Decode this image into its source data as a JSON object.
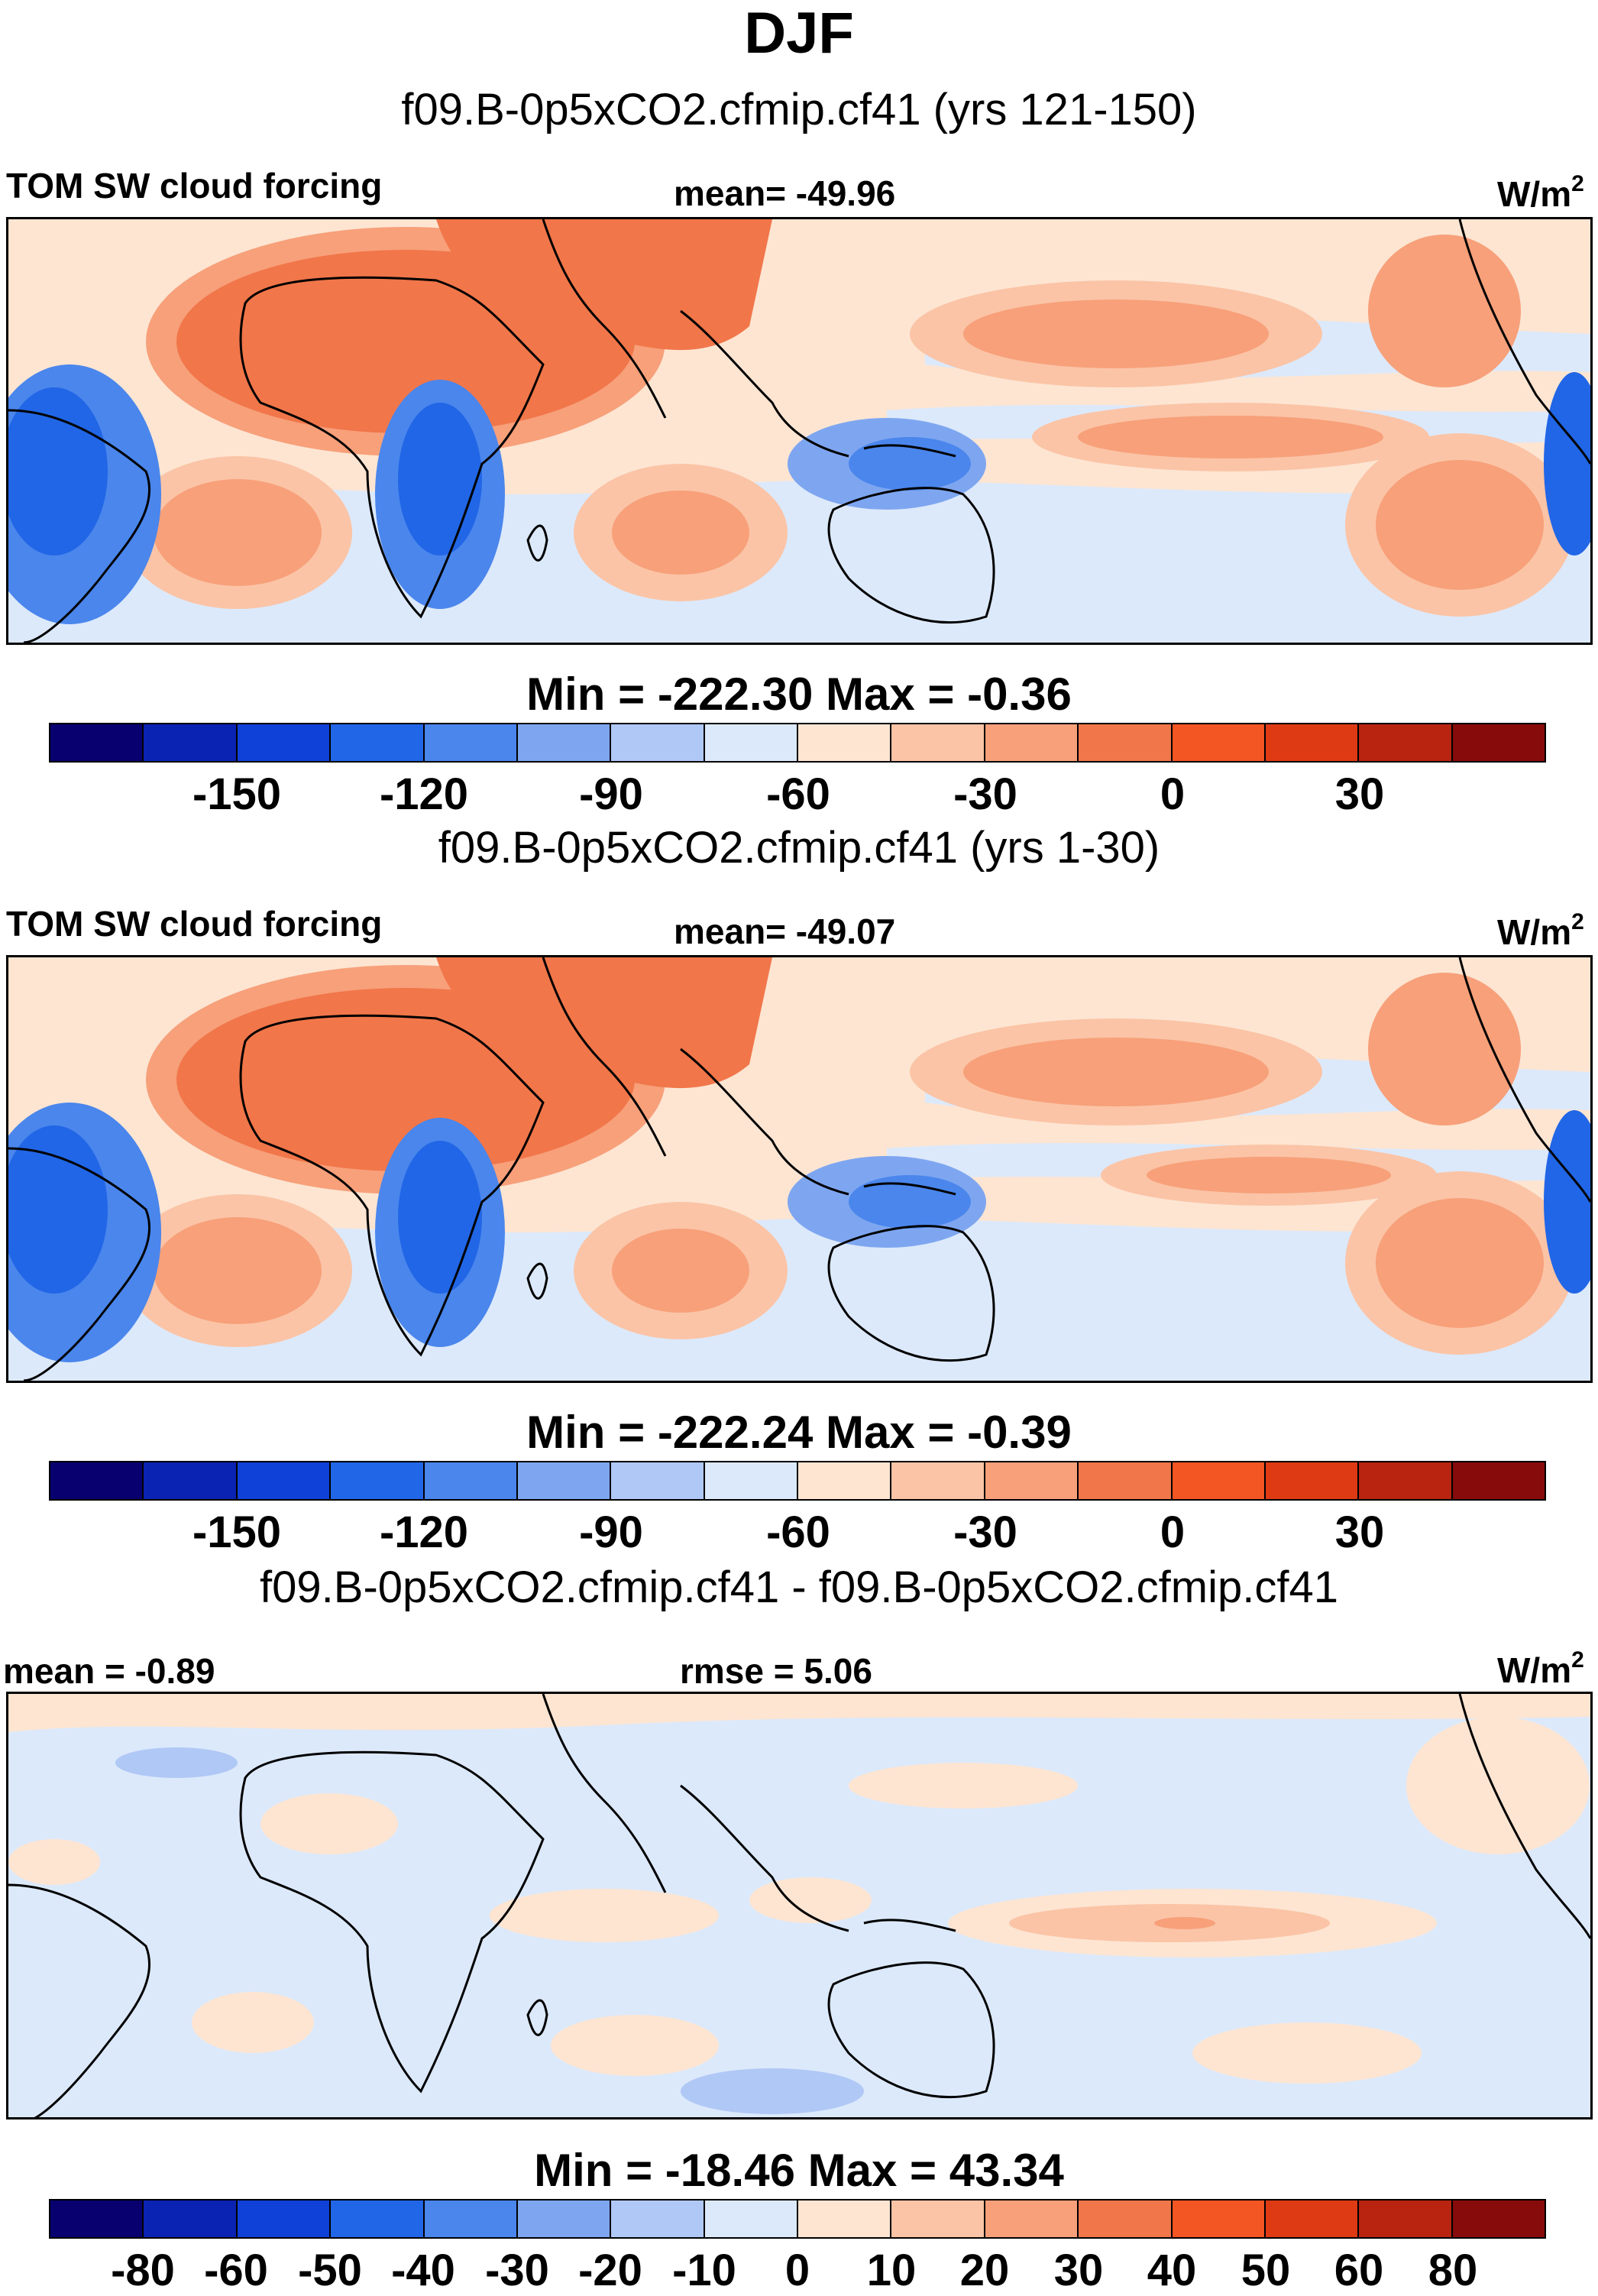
{
  "title": "DJF",
  "panels": [
    {
      "case_title": "f09.B-0p5xCO2.cfmip.cf41 (yrs 121-150)",
      "left_label": "TOM SW cloud forcing",
      "center_label": "mean= -49.96",
      "units": "W/m",
      "units_sup": "2",
      "minmax": "Min = -222.30 Max =  -0.36",
      "colorbar_colors": [
        "#08006f",
        "#0a23b2",
        "#0f40d8",
        "#2166e6",
        "#4a86ec",
        "#7ea6f0",
        "#b0c8f5",
        "#dce9fb",
        "#fde5d2",
        "#fbc4a6",
        "#f7a07a",
        "#f1764a",
        "#f35523",
        "#de3a14",
        "#b82410",
        "#870b0b"
      ],
      "colorbar_ticks": [
        "-150",
        "-120",
        "-90",
        "-60",
        "-30",
        "0",
        "30"
      ]
    },
    {
      "case_title": "f09.B-0p5xCO2.cfmip.cf41 (yrs 1-30)",
      "left_label": "TOM SW cloud forcing",
      "center_label": "mean= -49.07",
      "units": "W/m",
      "units_sup": "2",
      "minmax": "Min = -222.24 Max =  -0.39",
      "colorbar_colors": [
        "#08006f",
        "#0a23b2",
        "#0f40d8",
        "#2166e6",
        "#4a86ec",
        "#7ea6f0",
        "#b0c8f5",
        "#dce9fb",
        "#fde5d2",
        "#fbc4a6",
        "#f7a07a",
        "#f1764a",
        "#f35523",
        "#de3a14",
        "#b82410",
        "#870b0b"
      ],
      "colorbar_ticks": [
        "-150",
        "-120",
        "-90",
        "-60",
        "-30",
        "0",
        "30"
      ]
    },
    {
      "case_title": "f09.B-0p5xCO2.cfmip.cf41 - f09.B-0p5xCO2.cfmip.cf41",
      "left_label": "mean =  -0.89",
      "center_label": "rmse =   5.06",
      "units": "W/m",
      "units_sup": "2",
      "minmax": "Min = -18.46 Max =  43.34",
      "colorbar_colors": [
        "#08006f",
        "#0a23b2",
        "#0f40d8",
        "#2166e6",
        "#4a86ec",
        "#7ea6f0",
        "#b0c8f5",
        "#dce9fb",
        "#fde5d2",
        "#fbc4a6",
        "#f7a07a",
        "#f1764a",
        "#f35523",
        "#de3a14",
        "#b82410",
        "#870b0b"
      ],
      "colorbar_ticks": [
        "-80",
        "-60",
        "-50",
        "-40",
        "-30",
        "-20",
        "-10",
        "0",
        "10",
        "20",
        "30",
        "40",
        "50",
        "60",
        "80"
      ]
    }
  ],
  "chart_data": [
    {
      "type": "heatmap",
      "title": "DJF",
      "subtitle": "f09.B-0p5xCO2.cfmip.cf41 (yrs 121-150)",
      "variable": "TOM SW cloud forcing",
      "mean": -49.96,
      "min": -222.3,
      "max": -0.36,
      "units": "W/m2",
      "contour_levels": [
        -165,
        -150,
        -135,
        -120,
        -105,
        -90,
        -75,
        -60,
        -45,
        -30,
        -15,
        0,
        15,
        30,
        45
      ]
    },
    {
      "type": "heatmap",
      "subtitle": "f09.B-0p5xCO2.cfmip.cf41 (yrs 1-30)",
      "variable": "TOM SW cloud forcing",
      "mean": -49.07,
      "min": -222.24,
      "max": -0.39,
      "units": "W/m2",
      "contour_levels": [
        -165,
        -150,
        -135,
        -120,
        -105,
        -90,
        -75,
        -60,
        -45,
        -30,
        -15,
        0,
        15,
        30,
        45
      ]
    },
    {
      "type": "heatmap",
      "subtitle": "f09.B-0p5xCO2.cfmip.cf41 - f09.B-0p5xCO2.cfmip.cf41",
      "mean": -0.89,
      "rmse": 5.06,
      "min": -18.46,
      "max": 43.34,
      "units": "W/m2",
      "contour_levels": [
        -80,
        -60,
        -50,
        -40,
        -30,
        -20,
        -10,
        0,
        10,
        20,
        30,
        40,
        50,
        60,
        80
      ]
    }
  ]
}
